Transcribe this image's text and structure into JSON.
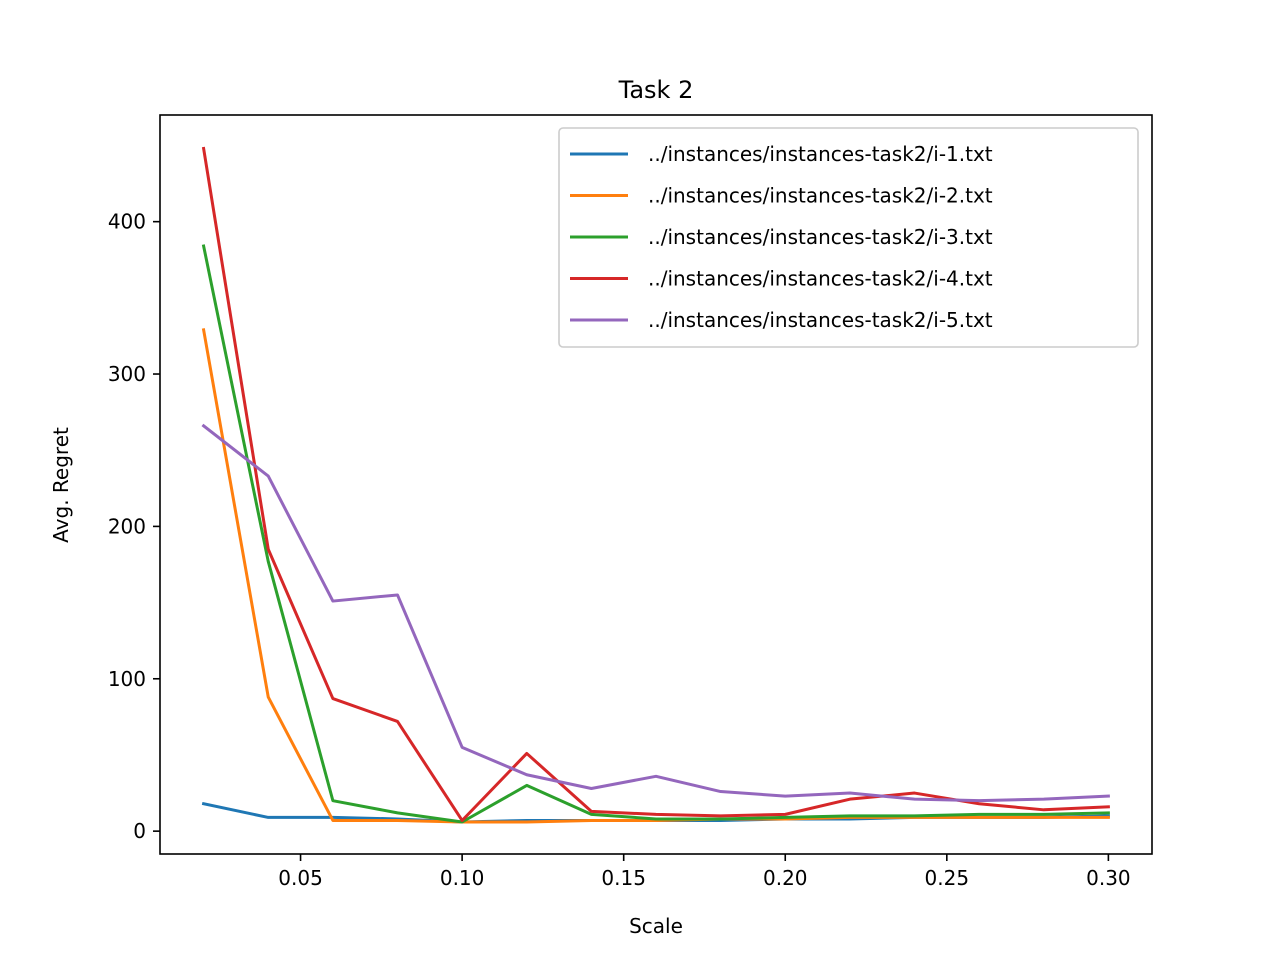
{
  "chart_data": {
    "type": "line",
    "title": "Task 2",
    "xlabel": "Scale",
    "ylabel": "Avg. Regret",
    "xlim": [
      0.0065,
      0.3135
    ],
    "ylim": [
      -15,
      470
    ],
    "xticks": [
      {
        "value": 0.05,
        "label": "0.05"
      },
      {
        "value": 0.1,
        "label": "0.10"
      },
      {
        "value": 0.15,
        "label": "0.15"
      },
      {
        "value": 0.2,
        "label": "0.20"
      },
      {
        "value": 0.25,
        "label": "0.25"
      },
      {
        "value": 0.3,
        "label": "0.30"
      }
    ],
    "yticks": [
      {
        "value": 0,
        "label": "0"
      },
      {
        "value": 100,
        "label": "100"
      },
      {
        "value": 200,
        "label": "200"
      },
      {
        "value": 300,
        "label": "300"
      },
      {
        "value": 400,
        "label": "400"
      }
    ],
    "grid": false,
    "legend_position": "top-right",
    "x": [
      0.02,
      0.04,
      0.06,
      0.08,
      0.1,
      0.12,
      0.14,
      0.16,
      0.18,
      0.2,
      0.22,
      0.24,
      0.26,
      0.28,
      0.3
    ],
    "series": [
      {
        "name": "../instances/instances-task2/i-1.txt",
        "color": "#1f77b4",
        "values": [
          18,
          9,
          9,
          8,
          6,
          7,
          7,
          7,
          7,
          8,
          8,
          9,
          9,
          9,
          10
        ]
      },
      {
        "name": "../instances/instances-task2/i-2.txt",
        "color": "#ff7f0e",
        "values": [
          329,
          88,
          7,
          7,
          6,
          6,
          7,
          7,
          8,
          8,
          9,
          9,
          9,
          9,
          9
        ]
      },
      {
        "name": "../instances/instances-task2/i-3.txt",
        "color": "#2ca02c",
        "values": [
          384,
          177,
          20,
          12,
          6,
          30,
          11,
          8,
          8,
          9,
          10,
          10,
          11,
          11,
          12
        ]
      },
      {
        "name": "../instances/instances-task2/i-4.txt",
        "color": "#d62728",
        "values": [
          448,
          185,
          87,
          72,
          7,
          51,
          13,
          11,
          10,
          11,
          21,
          25,
          18,
          14,
          16
        ]
      },
      {
        "name": "../instances/instances-task2/i-5.txt",
        "color": "#9467bd",
        "values": [
          266,
          233,
          151,
          155,
          55,
          37,
          28,
          36,
          26,
          23,
          25,
          21,
          20,
          21,
          23
        ]
      }
    ]
  }
}
